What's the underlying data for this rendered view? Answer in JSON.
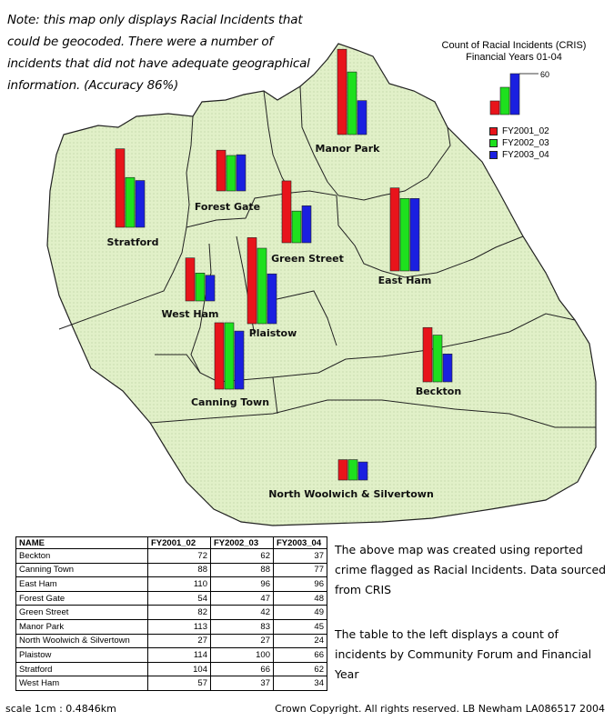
{
  "note": "Note: this map only displays Racial Incidents that could be geocoded. There were a number of incidents that did not have adequate geographical information. (Accuracy 86%)",
  "legend": {
    "title_line1": "Count of Racial Incidents (CRIS)",
    "title_line2": "Financial Years 01-04",
    "scale_value": "60",
    "scale_bars": [
      20,
      40,
      60
    ],
    "items": [
      {
        "label": "FY2001_02",
        "color": "#e8141b"
      },
      {
        "label": "FY2002_03",
        "color": "#1ee01e"
      },
      {
        "label": "FY2003_04",
        "color": "#1a1fe0"
      }
    ]
  },
  "colors": {
    "map_fill": "#e1f0c8",
    "map_border": "#222222"
  },
  "areas": [
    {
      "name": "Beckton",
      "fy2001_02": 72,
      "fy2002_03": 62,
      "fy2003_04": 37
    },
    {
      "name": "Canning Town",
      "fy2001_02": 88,
      "fy2002_03": 88,
      "fy2003_04": 77
    },
    {
      "name": "East Ham",
      "fy2001_02": 110,
      "fy2002_03": 96,
      "fy2003_04": 96
    },
    {
      "name": "Forest Gate",
      "fy2001_02": 54,
      "fy2002_03": 47,
      "fy2003_04": 48
    },
    {
      "name": "Green Street",
      "fy2001_02": 82,
      "fy2002_03": 42,
      "fy2003_04": 49
    },
    {
      "name": "Manor Park",
      "fy2001_02": 113,
      "fy2002_03": 83,
      "fy2003_04": 45
    },
    {
      "name": "North Woolwich & Silvertown",
      "fy2001_02": 27,
      "fy2002_03": 27,
      "fy2003_04": 24
    },
    {
      "name": "Plaistow",
      "fy2001_02": 114,
      "fy2002_03": 100,
      "fy2003_04": 66
    },
    {
      "name": "Stratford",
      "fy2001_02": 104,
      "fy2002_03": 66,
      "fy2003_04": 62
    },
    {
      "name": "West Ham",
      "fy2001_02": 57,
      "fy2002_03": 37,
      "fy2003_04": 34
    }
  ],
  "table": {
    "headers": [
      "NAME",
      "FY2001_02",
      "FY2002_03",
      "FY2003_04"
    ]
  },
  "side_text_1": "The above map was created using reported crime flagged as Racial Incidents. Data sourced from CRIS",
  "side_text_2": "The table to the left displays a count of incidents by Community Forum and Financial Year",
  "scale": "scale 1cm : 0.4846km",
  "copyright": "Crown Copyright. All rights reserved. LB Newham LA086517 2004"
}
